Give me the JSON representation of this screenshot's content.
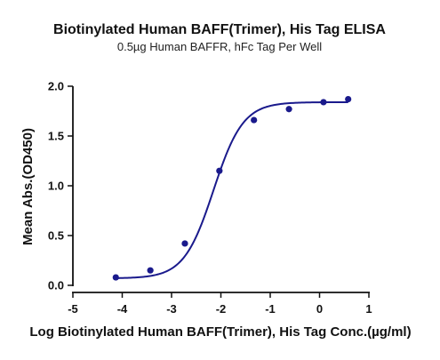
{
  "chart_data": {
    "type": "scatter",
    "title": "Biotinylated Human BAFF(Trimer), His Tag ELISA",
    "subtitle": "0.5µg Human BAFFR, hFc Tag Per Well",
    "xlabel": "Log Biotinylated Human BAFF(Trimer), His Tag Conc.(µg/ml)",
    "ylabel": "Mean Abs.(OD450)",
    "xlim": [
      -5,
      1
    ],
    "ylim": [
      0.0,
      2.0
    ],
    "x_ticks": [
      "-5",
      "-4",
      "-3",
      "-2",
      "-1",
      "0",
      "1"
    ],
    "y_ticks": [
      "0.0",
      "0.5",
      "1.0",
      "1.5",
      "2.0"
    ],
    "grid": false,
    "series": [
      {
        "color": "#1a1a8c",
        "x": [
          -4.13,
          -3.43,
          -2.73,
          -2.03,
          -1.33,
          -0.62,
          0.08,
          0.58
        ],
        "y": [
          0.08,
          0.15,
          0.42,
          1.15,
          1.66,
          1.77,
          1.84,
          1.87
        ],
        "fit": "sigmoidal 4PL curve through points"
      }
    ]
  }
}
